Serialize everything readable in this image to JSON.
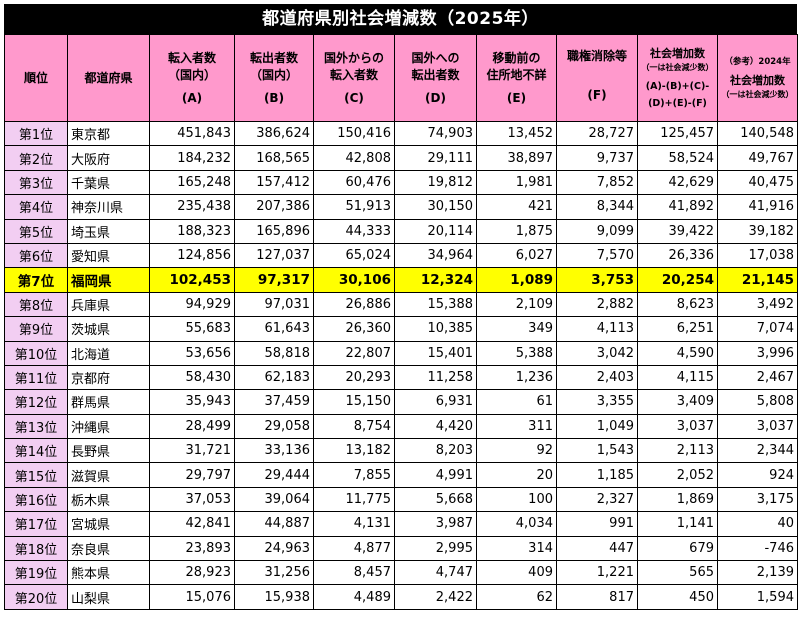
{
  "title": "都道府県別社会増減数（2025年）",
  "headers": {
    "rank": "順位",
    "pref": "都道府県",
    "a_l1": "転入者数",
    "a_l2": "（国内）",
    "a_l3": "(A)",
    "b_l1": "転出者数",
    "b_l2": "（国内）",
    "b_l3": "(B)",
    "c_l1": "国外からの",
    "c_l2": "転入者数",
    "c_l3": "(C)",
    "d_l1": "国外への",
    "d_l2": "転出者数",
    "d_l3": "(D)",
    "e_l1": "移動前の",
    "e_l2": "住所地不詳",
    "e_l3": "(E)",
    "f_l1": "職権消除等",
    "f_l3": "(F)",
    "g_l1": "社会増加数",
    "g_l2": "（一は社会減少数）",
    "g_l3": "(A)-(B)+(C)-",
    "g_l4": "(D)+(E)-(F)",
    "h_l1": "（参考）2024年",
    "h_l2": "社会増加数",
    "h_l3": "（一は社会減少数）"
  },
  "highlight_color": "#ffff00",
  "header_color": "#ff99cc",
  "rank_color": "#f2cef2",
  "rows": [
    {
      "rank": "第1位",
      "pref": "東京都",
      "a": "451,843",
      "b": "386,624",
      "c": "150,416",
      "d": "74,903",
      "e": "13,452",
      "f": "28,727",
      "g": "125,457",
      "h": "140,548"
    },
    {
      "rank": "第2位",
      "pref": "大阪府",
      "a": "184,232",
      "b": "168,565",
      "c": "42,808",
      "d": "29,111",
      "e": "38,897",
      "f": "9,737",
      "g": "58,524",
      "h": "49,767"
    },
    {
      "rank": "第3位",
      "pref": "千葉県",
      "a": "165,248",
      "b": "157,412",
      "c": "60,476",
      "d": "19,812",
      "e": "1,981",
      "f": "7,852",
      "g": "42,629",
      "h": "40,475"
    },
    {
      "rank": "第4位",
      "pref": "神奈川県",
      "a": "235,438",
      "b": "207,386",
      "c": "51,913",
      "d": "30,150",
      "e": "421",
      "f": "8,344",
      "g": "41,892",
      "h": "41,916"
    },
    {
      "rank": "第5位",
      "pref": "埼玉県",
      "a": "188,323",
      "b": "165,896",
      "c": "44,333",
      "d": "20,114",
      "e": "1,875",
      "f": "9,099",
      "g": "39,422",
      "h": "39,182"
    },
    {
      "rank": "第6位",
      "pref": "愛知県",
      "a": "124,856",
      "b": "127,037",
      "c": "65,024",
      "d": "34,964",
      "e": "6,027",
      "f": "7,570",
      "g": "26,336",
      "h": "17,038"
    },
    {
      "rank": "第7位",
      "pref": "福岡県",
      "a": "102,453",
      "b": "97,317",
      "c": "30,106",
      "d": "12,324",
      "e": "1,089",
      "f": "3,753",
      "g": "20,254",
      "h": "21,145",
      "highlight": true
    },
    {
      "rank": "第8位",
      "pref": "兵庫県",
      "a": "94,929",
      "b": "97,031",
      "c": "26,886",
      "d": "15,388",
      "e": "2,109",
      "f": "2,882",
      "g": "8,623",
      "h": "3,492"
    },
    {
      "rank": "第9位",
      "pref": "茨城県",
      "a": "55,683",
      "b": "61,643",
      "c": "26,360",
      "d": "10,385",
      "e": "349",
      "f": "4,113",
      "g": "6,251",
      "h": "7,074"
    },
    {
      "rank": "第10位",
      "pref": "北海道",
      "a": "53,656",
      "b": "58,818",
      "c": "22,807",
      "d": "15,401",
      "e": "5,388",
      "f": "3,042",
      "g": "4,590",
      "h": "3,996"
    },
    {
      "rank": "第11位",
      "pref": "京都府",
      "a": "58,430",
      "b": "62,183",
      "c": "20,293",
      "d": "11,258",
      "e": "1,236",
      "f": "2,403",
      "g": "4,115",
      "h": "2,467"
    },
    {
      "rank": "第12位",
      "pref": "群馬県",
      "a": "35,943",
      "b": "37,459",
      "c": "15,150",
      "d": "6,931",
      "e": "61",
      "f": "3,355",
      "g": "3,409",
      "h": "5,808"
    },
    {
      "rank": "第13位",
      "pref": "沖縄県",
      "a": "28,499",
      "b": "29,058",
      "c": "8,754",
      "d": "4,420",
      "e": "311",
      "f": "1,049",
      "g": "3,037",
      "h": "3,037"
    },
    {
      "rank": "第14位",
      "pref": "長野県",
      "a": "31,721",
      "b": "33,136",
      "c": "13,182",
      "d": "8,203",
      "e": "92",
      "f": "1,543",
      "g": "2,113",
      "h": "2,344"
    },
    {
      "rank": "第15位",
      "pref": "滋賀県",
      "a": "29,797",
      "b": "29,444",
      "c": "7,855",
      "d": "4,991",
      "e": "20",
      "f": "1,185",
      "g": "2,052",
      "h": "924"
    },
    {
      "rank": "第16位",
      "pref": "栃木県",
      "a": "37,053",
      "b": "39,064",
      "c": "11,775",
      "d": "5,668",
      "e": "100",
      "f": "2,327",
      "g": "1,869",
      "h": "3,175"
    },
    {
      "rank": "第17位",
      "pref": "宮城県",
      "a": "42,841",
      "b": "44,887",
      "c": "4,131",
      "d": "3,987",
      "e": "4,034",
      "f": "991",
      "g": "1,141",
      "h": "40"
    },
    {
      "rank": "第18位",
      "pref": "奈良県",
      "a": "23,893",
      "b": "24,963",
      "c": "4,877",
      "d": "2,995",
      "e": "314",
      "f": "447",
      "g": "679",
      "h": "-746"
    },
    {
      "rank": "第19位",
      "pref": "熊本県",
      "a": "28,923",
      "b": "31,256",
      "c": "8,457",
      "d": "4,747",
      "e": "409",
      "f": "1,221",
      "g": "565",
      "h": "2,139"
    },
    {
      "rank": "第20位",
      "pref": "山梨県",
      "a": "15,076",
      "b": "15,938",
      "c": "4,489",
      "d": "2,422",
      "e": "62",
      "f": "817",
      "g": "450",
      "h": "1,594"
    }
  ]
}
